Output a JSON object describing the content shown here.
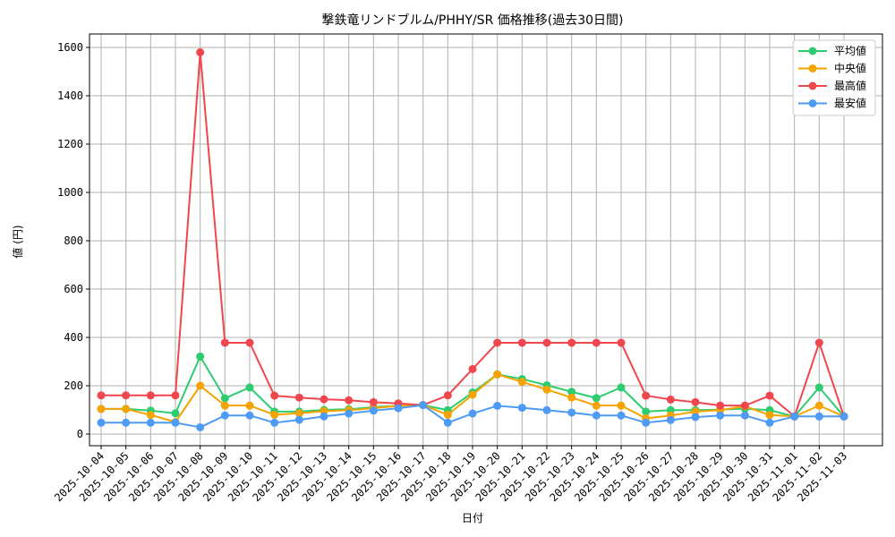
{
  "chart_data": {
    "type": "line",
    "title": "撃鉄竜リンドブルム/PHHY/SR 価格推移(過去30日間)",
    "xlabel": "日付",
    "ylabel": "値 (円)",
    "ylim": [
      0,
      1600
    ],
    "yticks": [
      0,
      200,
      400,
      600,
      800,
      1000,
      1200,
      1400,
      1600
    ],
    "grid": true,
    "legend_position": "upper right",
    "x": [
      "2025-10-04",
      "2025-10-05",
      "2025-10-06",
      "2025-10-07",
      "2025-10-08",
      "2025-10-09",
      "2025-10-10",
      "2025-10-11",
      "2025-10-12",
      "2025-10-13",
      "2025-10-14",
      "2025-10-15",
      "2025-10-16",
      "2025-10-17",
      "2025-10-18",
      "2025-10-19",
      "2025-10-20",
      "2025-10-21",
      "2025-10-22",
      "2025-10-23",
      "2025-10-24",
      "2025-10-25",
      "2025-10-26",
      "2025-10-27",
      "2025-10-28",
      "2025-10-29",
      "2025-10-30",
      "2025-10-31",
      "2025-11-01",
      "2025-11-02",
      "2025-11-03"
    ],
    "series": [
      {
        "name": "平均値",
        "color": "#2ecc71",
        "values": [
          104,
          104,
          97,
          86,
          321,
          148,
          193,
          93,
          93,
          100,
          103,
          111,
          117,
          120,
          99,
          172,
          247,
          228,
          202,
          175,
          149,
          193,
          93,
          99,
          99,
          101,
          105,
          99,
          73,
          193,
          73
        ]
      },
      {
        "name": "中央値",
        "color": "#f5a300",
        "values": [
          104,
          104,
          79,
          50,
          200,
          118,
          118,
          80,
          86,
          95,
          99,
          107,
          117,
          120,
          80,
          163,
          247,
          216,
          184,
          151,
          118,
          118,
          65,
          77,
          93,
          99,
          115,
          79,
          73,
          118,
          73
        ]
      },
      {
        "name": "最高値",
        "color": "#f0474f",
        "values": [
          160,
          160,
          160,
          160,
          1580,
          378,
          378,
          159,
          151,
          144,
          140,
          132,
          127,
          120,
          160,
          269,
          378,
          378,
          378,
          378,
          378,
          378,
          159,
          143,
          132,
          118,
          118,
          159,
          73,
          378,
          73
        ]
      },
      {
        "name": "最安値",
        "color": "#4e9bf5",
        "values": [
          47,
          47,
          47,
          47,
          28,
          77,
          77,
          47,
          59,
          73,
          85,
          97,
          107,
          120,
          47,
          85,
          117,
          109,
          99,
          89,
          77,
          77,
          47,
          58,
          70,
          77,
          77,
          47,
          73,
          73,
          73
        ]
      }
    ]
  }
}
